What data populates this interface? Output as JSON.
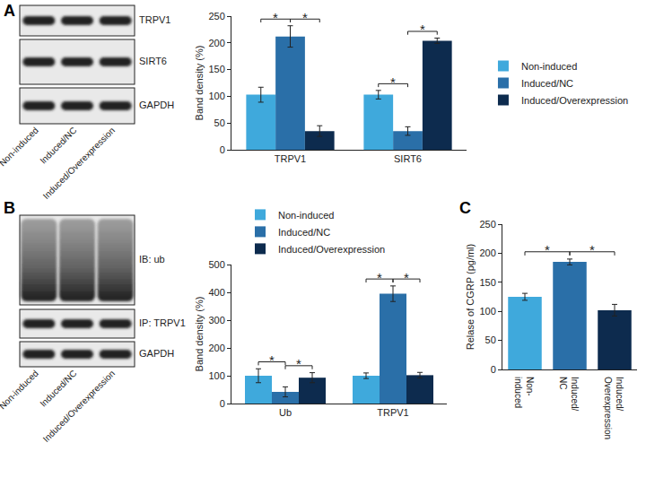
{
  "panel_labels": [
    "A",
    "B",
    "C"
  ],
  "blots": [
    {
      "rows": [
        "TRPV1",
        "SIRT6",
        "GAPDH"
      ],
      "lanes": [
        "Non-induced",
        "Induced/NC",
        "Induced/Overexpression"
      ]
    },
    {
      "rows": [
        "IB: ub",
        "IP: TRPV1",
        "GAPDH"
      ],
      "lanes": [
        "Non-induced",
        "Induced/NC",
        "Induced/Overexpression"
      ]
    }
  ],
  "chart_data": [
    {
      "type": "bar",
      "categories": [
        "TRPV1",
        "SIRT6"
      ],
      "ylabel": "Band density (%)",
      "ylim": [
        0,
        250
      ],
      "yticks": [
        0,
        50,
        100,
        150,
        200,
        250
      ],
      "legend": "right",
      "grid": false,
      "series": [
        {
          "name": "Non-induced",
          "color": "#3fa9dc",
          "values": [
            103,
            103
          ],
          "errors": [
            14,
            8
          ]
        },
        {
          "name": "Induced/NC",
          "color": "#2a6fa8",
          "values": [
            212,
            35
          ],
          "errors": [
            20,
            8
          ]
        },
        {
          "name": "Induced/Overexpression",
          "color": "#0d2b4e",
          "values": [
            35,
            204
          ],
          "errors": [
            10,
            5
          ]
        }
      ],
      "annotations": [
        {
          "text": "*",
          "category": "TRPV1",
          "between": [
            "Non-induced",
            "Induced/NC"
          ]
        },
        {
          "text": "*",
          "category": "TRPV1",
          "between": [
            "Induced/NC",
            "Induced/Overexpression"
          ]
        },
        {
          "text": "*",
          "category": "SIRT6",
          "between": [
            "Non-induced",
            "Induced/NC"
          ]
        },
        {
          "text": "*",
          "category": "SIRT6",
          "between": [
            "Induced/NC",
            "Induced/Overexpression"
          ]
        }
      ]
    },
    {
      "type": "bar",
      "categories": [
        "Ub",
        "TRPV1"
      ],
      "ylabel": "Band density (%)",
      "ylim": [
        0,
        500
      ],
      "yticks": [
        0,
        100,
        200,
        300,
        400,
        500
      ],
      "legend": "top",
      "grid": false,
      "series": [
        {
          "name": "Non-induced",
          "color": "#3fa9dc",
          "values": [
            100,
            100
          ],
          "errors": [
            25,
            10
          ]
        },
        {
          "name": "Induced/NC",
          "color": "#2a6fa8",
          "values": [
            42,
            395
          ],
          "errors": [
            18,
            28
          ]
        },
        {
          "name": "Induced/Overexpression",
          "color": "#0d2b4e",
          "values": [
            93,
            102
          ],
          "errors": [
            18,
            10
          ]
        }
      ],
      "annotations": [
        {
          "text": "*",
          "category": "Ub",
          "between": [
            "Non-induced",
            "Induced/NC"
          ]
        },
        {
          "text": "*",
          "category": "Ub",
          "between": [
            "Induced/NC",
            "Induced/Overexpression"
          ]
        },
        {
          "text": "*",
          "category": "TRPV1",
          "between": [
            "Non-induced",
            "Induced/NC"
          ]
        },
        {
          "text": "*",
          "category": "TRPV1",
          "between": [
            "Induced/NC",
            "Induced/Overexpression"
          ]
        }
      ]
    },
    {
      "type": "bar",
      "categories": [
        "Non-\ninduced",
        "Induced/\nNC",
        "Induced/\nOverexpression"
      ],
      "ylabel": "Relase of CGRP (pg/ml)",
      "ylim": [
        0,
        250
      ],
      "yticks": [
        0,
        50,
        100,
        150,
        200,
        250
      ],
      "grid": false,
      "values": [
        125,
        185,
        102
      ],
      "errors": [
        6,
        5,
        10
      ],
      "colors": [
        "#3fa9dc",
        "#2a6fa8",
        "#0d2b4e"
      ],
      "annotations": [
        {
          "text": "*",
          "between": [
            "Non-\ninduced",
            "Induced/\nNC"
          ]
        },
        {
          "text": "*",
          "between": [
            "Induced/\nNC",
            "Induced/\nOverexpression"
          ]
        }
      ]
    }
  ]
}
